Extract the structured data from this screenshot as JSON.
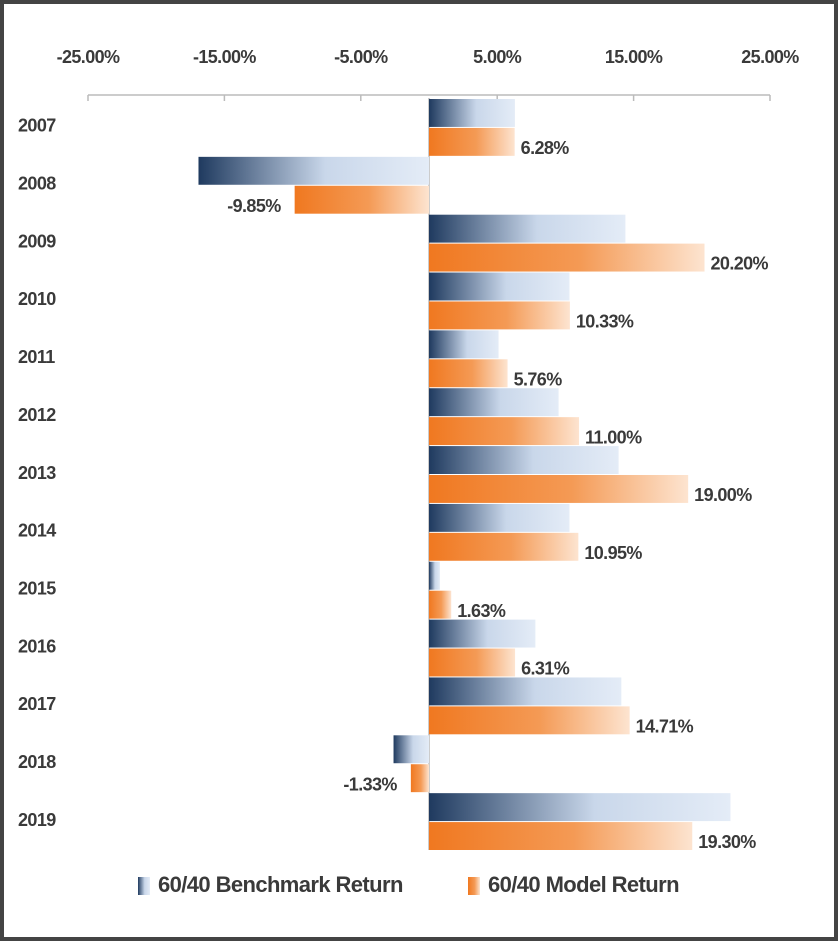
{
  "chart_data": {
    "type": "hbar",
    "categories": [
      "2007",
      "2008",
      "2009",
      "2010",
      "2011",
      "2012",
      "2013",
      "2014",
      "2015",
      "2016",
      "2017",
      "2018",
      "2019"
    ],
    "series": [
      {
        "name": "60/40 Benchmark Return",
        "color": "#1f3a5f",
        "values": [
          6.3,
          -16.9,
          14.4,
          10.3,
          5.1,
          9.5,
          13.9,
          10.3,
          0.8,
          7.8,
          14.1,
          -2.6,
          22.1
        ]
      },
      {
        "name": "60/40 Model Return",
        "color": "#f07820",
        "values": [
          6.28,
          -9.85,
          20.2,
          10.33,
          5.76,
          11.0,
          19.0,
          10.95,
          1.63,
          6.31,
          14.71,
          -1.33,
          19.3
        ],
        "value_labels": [
          "6.28%",
          "-9.85%",
          "20.20%",
          "10.33%",
          "5.76%",
          "11.00%",
          "19.00%",
          "10.95%",
          "1.63%",
          "6.31%",
          "14.71%",
          "-1.33%",
          "19.30%"
        ]
      }
    ],
    "xlim": [
      -25,
      25
    ],
    "xticks": [
      {
        "value": -25,
        "label": "-25.00%"
      },
      {
        "value": -15,
        "label": "-15.00%"
      },
      {
        "value": -5,
        "label": "-5.00%"
      },
      {
        "value": 5,
        "label": "5.00%"
      },
      {
        "value": 15,
        "label": "15.00%"
      },
      {
        "value": 25,
        "label": "25.00%"
      }
    ],
    "legend": "bottom"
  }
}
